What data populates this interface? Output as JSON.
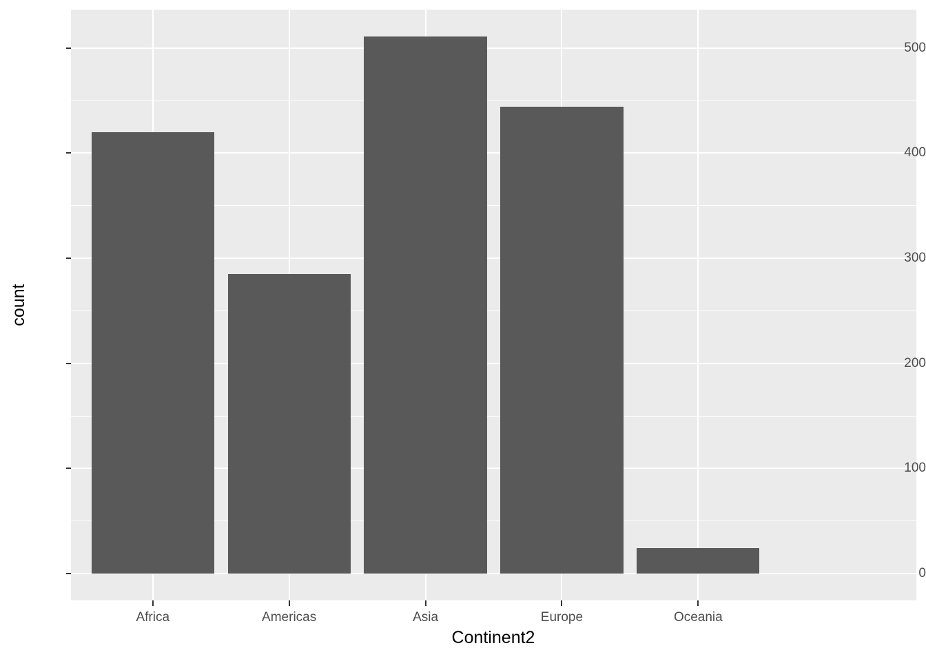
{
  "chart_data": {
    "type": "bar",
    "title": "",
    "xlabel": "Continent2",
    "ylabel": "count",
    "categories": [
      "Africa",
      "Americas",
      "Asia",
      "Europe",
      "Oceania"
    ],
    "values": [
      420,
      285,
      511,
      444,
      24
    ],
    "ylim": [
      -25.5,
      536.5
    ],
    "y_major_ticks": [
      0,
      100,
      200,
      300,
      400,
      500
    ],
    "y_minor_gridlines": [
      50,
      150,
      250,
      350,
      450
    ],
    "grid": "on",
    "legend": "none",
    "bar_rel_width": 0.9,
    "discrete_expand": 0.6,
    "style": {
      "bar_fill": "#595959",
      "panel_background": "#EBEBEB",
      "gridline_color": "#FFFFFF",
      "tick_label_color": "#4D4D4D",
      "axis_title_color": "#000000",
      "tick_mark_color": "#333333",
      "figure_background": "#FFFFFF"
    }
  }
}
